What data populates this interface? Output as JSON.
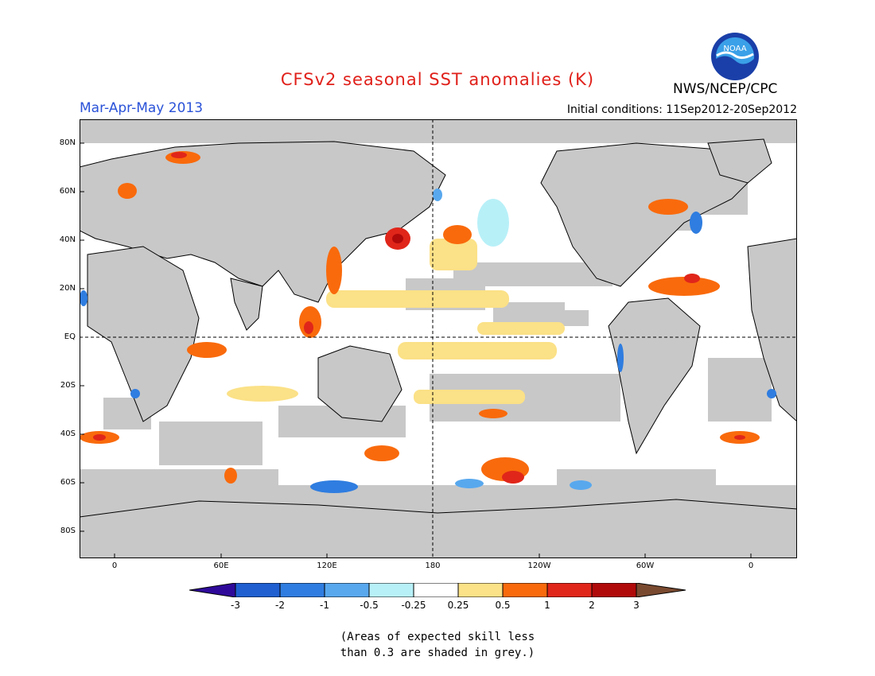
{
  "title": "CFSv2 seasonal SST anomalies (K)",
  "season": "Mar-Apr-May 2013",
  "initial_conditions": "Initial conditions: 11Sep2012-20Sep2012",
  "agency": "NWS/NCEP/CPC",
  "logo_text": "NOAA",
  "lat_labels": [
    "80N",
    "60N",
    "40N",
    "20N",
    "EQ",
    "20S",
    "40S",
    "60S",
    "80S"
  ],
  "lon_labels": [
    "0",
    "60E",
    "120E",
    "180",
    "120W",
    "60W",
    "0"
  ],
  "colorbar": {
    "labels": [
      "-3",
      "-2",
      "-1",
      "-0.5",
      "-0.25",
      "0.25",
      "0.5",
      "1",
      "2",
      "3"
    ],
    "colors": [
      "#2f0a9a",
      "#1f5fd0",
      "#2f7de0",
      "#58a8ee",
      "#b8f0f8",
      "#ffffff",
      "#fbe187",
      "#f96a0c",
      "#e0261a",
      "#b00a0a",
      "#7a4a30"
    ]
  },
  "note": [
    "(Areas of expected skill less",
    "than 0.3 are shaded in grey.)"
  ],
  "colors": {
    "title": "#e0201a",
    "season": "#2a52d8",
    "grey": "#c8c8c8",
    "land": "#c8c8c8"
  }
}
